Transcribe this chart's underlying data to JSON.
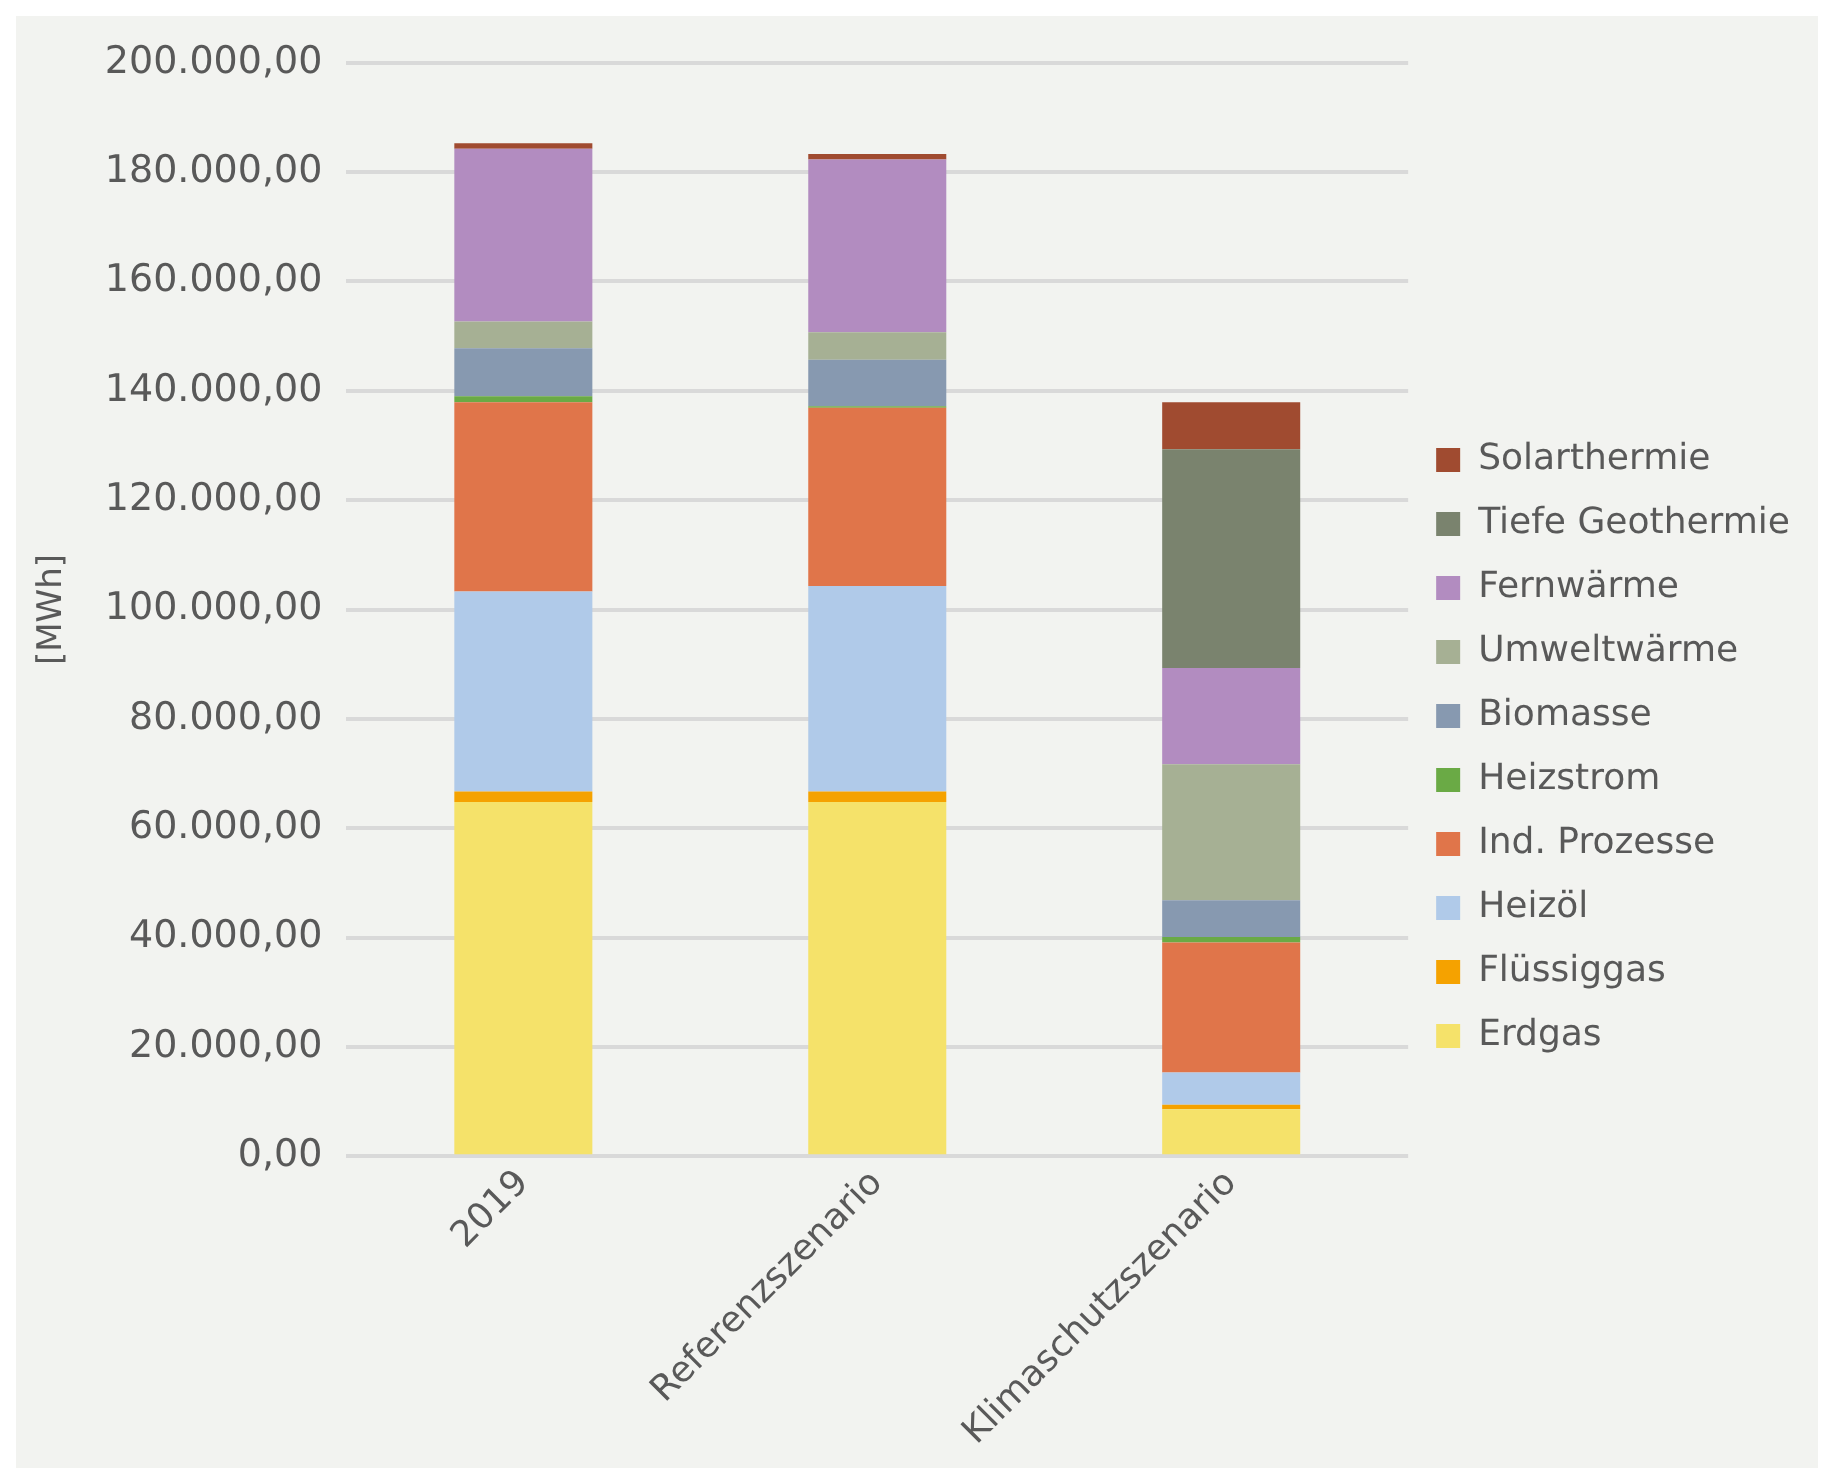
{
  "chart_data": {
    "type": "bar",
    "stacked": true,
    "ylabel": "[MWh]",
    "categories": [
      "2019",
      "Referenzszenario",
      "Klimaschutzszenario"
    ],
    "series": [
      {
        "name": "Erdgas",
        "color": "#f5e26a",
        "values": [
          64800,
          64800,
          8600
        ]
      },
      {
        "name": "Flüssiggas",
        "color": "#f5a200",
        "values": [
          1900,
          1900,
          800
        ]
      },
      {
        "name": "Heizöl",
        "color": "#b0cae9",
        "values": [
          36600,
          37600,
          5900
        ]
      },
      {
        "name": "Ind. Prozesse",
        "color": "#e0754a",
        "values": [
          34600,
          32600,
          23800
        ]
      },
      {
        "name": "Heizstrom",
        "color": "#6aaa45",
        "values": [
          1100,
          300,
          1000
        ]
      },
      {
        "name": "Biomasse",
        "color": "#8799b0",
        "values": [
          8800,
          8500,
          6700
        ]
      },
      {
        "name": "Umweltwärme",
        "color": "#a6b094",
        "values": [
          4900,
          5000,
          24900
        ]
      },
      {
        "name": "Fernwärme",
        "color": "#b28cc0",
        "values": [
          31600,
          31600,
          17600
        ]
      },
      {
        "name": "Tiefe Geothermie",
        "color": "#7a836e",
        "values": [
          0,
          0,
          40000
        ]
      },
      {
        "name": "Solarthermie",
        "color": "#a04b30",
        "values": [
          1000,
          1000,
          8600
        ]
      }
    ],
    "ylim": [
      0,
      200000
    ],
    "yticks": [
      {
        "value": 0,
        "label": "0,00"
      },
      {
        "value": 20000,
        "label": "20.000,00"
      },
      {
        "value": 40000,
        "label": "40.000,00"
      },
      {
        "value": 60000,
        "label": "60.000,00"
      },
      {
        "value": 80000,
        "label": "80.000,00"
      },
      {
        "value": 100000,
        "label": "100.000,00"
      },
      {
        "value": 120000,
        "label": "120.000,00"
      },
      {
        "value": 140000,
        "label": "140.000,00"
      },
      {
        "value": 160000,
        "label": "160.000,00"
      },
      {
        "value": 180000,
        "label": "180.000,00"
      },
      {
        "value": 200000,
        "label": "200.000,00"
      }
    ],
    "grid": "y",
    "legend": "right"
  }
}
